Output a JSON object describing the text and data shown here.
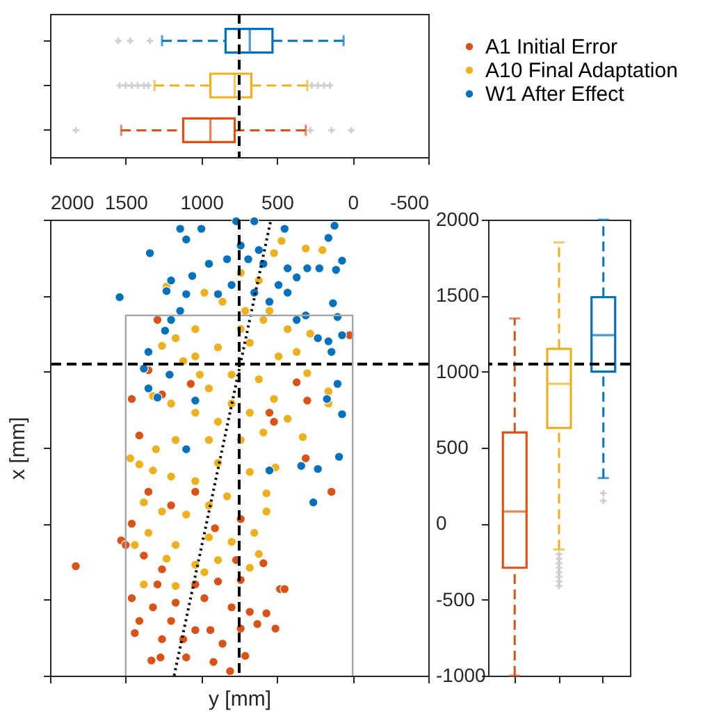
{
  "chart_data": [
    {
      "type": "box",
      "orientation": "horizontal",
      "categories": [
        null,
        null,
        null
      ],
      "xlim": [
        2000,
        -500
      ],
      "xticks": [
        2000,
        1500,
        1000,
        500,
        0,
        -500
      ],
      "tick_labels": false,
      "line_style": "dashed",
      "colors": [
        "#0072bd",
        "#edb120",
        "#d95319"
      ],
      "boxes": [
        {
          "low": 1260,
          "q1": 840,
          "median": 680,
          "q3": 530,
          "high": 60,
          "outliers": [
            1550,
            1470,
            1340
          ]
        },
        {
          "low": 1310,
          "q1": 940,
          "median": 780,
          "q3": 670,
          "high": 300,
          "outliers": [
            1540,
            1500,
            1460,
            1420,
            1380,
            1350,
            270,
            230,
            190,
            150
          ]
        },
        {
          "low": 1530,
          "q1": 1120,
          "median": 940,
          "q3": 780,
          "high": 310,
          "outliers": [
            1830,
            280,
            140,
            10
          ]
        }
      ],
      "ref_lines": [
        {
          "axis": "x",
          "value": 750,
          "color": "#000000",
          "line_style": "dashed"
        }
      ]
    },
    {
      "type": "scatter",
      "xlabel": "y [mm]",
      "ylabel": "x [mm]",
      "xlim": [
        2000,
        -500
      ],
      "xticks": [
        2000,
        1500,
        1000,
        500,
        0,
        -500
      ],
      "ylim": [
        -1000,
        2000
      ],
      "yticks": [
        -1000,
        -500,
        0,
        500,
        1000,
        1500,
        2000
      ],
      "marker": "circle",
      "legend": "top right",
      "series": [
        {
          "name": "A1 Initial Error",
          "color": "#d95319",
          "x": [
            1290,
            1350,
            1460,
            1260,
            1410,
            370,
            20,
            300,
            550,
            520,
            1070,
            1530,
            1500,
            1830,
            1460,
            1350,
            1200,
            1040,
            1380,
            1260,
            1040,
            890,
            740,
            590,
            1460,
            1410,
            1320,
            1170,
            980,
            800,
            680,
            480,
            450,
            570,
            510,
            1440,
            1260,
            1120,
            940,
            860,
            1330,
            1270,
            1100,
            920,
            810,
            710,
            630,
            310,
            140,
            910,
            740,
            1290,
            1200,
            1040,
            740,
            770
          ],
          "values": [
            1340,
            1010,
            820,
            850,
            580,
            930,
            1240,
            810,
            730,
            670,
            920,
            -110,
            -140,
            -280,
            0,
            210,
            120,
            210,
            -210,
            -300,
            -400,
            -380,
            -370,
            -260,
            -490,
            -640,
            -550,
            -520,
            -490,
            -550,
            -580,
            -430,
            -430,
            -590,
            -690,
            -720,
            -760,
            -760,
            -700,
            -790,
            -900,
            -880,
            -880,
            -910,
            -970,
            -870,
            -660,
            430,
            210,
            -30,
            30,
            -400,
            -640,
            -700,
            -690,
            -240
          ]
        },
        {
          "name": "A10 Final Adaptation",
          "color": "#edb120",
          "x": [
            470,
            310,
            200,
            520,
            740,
            620,
            1230,
            980,
            860,
            710,
            590,
            430,
            280,
            1040,
            1170,
            1260,
            890,
            680,
            490,
            370,
            300,
            160,
            160,
            1120,
            1010,
            800,
            620,
            1320,
            1200,
            1040,
            890,
            680,
            520,
            430,
            330,
            1300,
            1170,
            950,
            740,
            590,
            800,
            950,
            1040,
            740,
            550,
            1470,
            1410,
            1320,
            1200,
            1040,
            890,
            680,
            510,
            570,
            570,
            1380,
            1260,
            1100,
            950,
            830,
            1350,
            1170,
            950,
            800,
            650,
            1440,
            1230,
            1040,
            890,
            620,
            680,
            980,
            1380,
            1170
          ],
          "values": [
            1860,
            1810,
            1800,
            1780,
            1650,
            1600,
            1560,
            1520,
            1460,
            1400,
            1340,
            1280,
            1250,
            1280,
            1220,
            1170,
            1160,
            1190,
            1100,
            1130,
            990,
            870,
            790,
            1070,
            980,
            980,
            950,
            840,
            790,
            730,
            670,
            730,
            820,
            690,
            570,
            490,
            550,
            550,
            550,
            600,
            790,
            890,
            1100,
            1280,
            1400,
            430,
            390,
            350,
            310,
            280,
            400,
            340,
            370,
            200,
            80,
            140,
            80,
            60,
            120,
            180,
            -60,
            -140,
            -90,
            -120,
            -60,
            -140,
            -230,
            -270,
            -240,
            -200,
            -290,
            -320,
            -400,
            -410
          ]
        },
        {
          "name": "W1 After Effect",
          "color": "#0072bd",
          "x": [
            1140,
            1000,
            1100,
            1340,
            650,
            770,
            450,
            120,
            160,
            70,
            1540,
            1200,
            1060,
            950,
            830,
            690,
            590,
            430,
            300,
            220,
            110,
            370,
            1230,
            1100,
            130,
            100,
            70,
            160,
            140,
            230,
            1140,
            1200,
            1350,
            1380,
            1350,
            1290,
            1040,
            100,
            70,
            170,
            1210,
            1240,
            370,
            310,
            550,
            650,
            800,
            890,
            490,
            430,
            340,
            230,
            90,
            550,
            260,
            1100,
            740,
            620
          ],
          "values": [
            1940,
            1940,
            1870,
            1780,
            1990,
            1990,
            1940,
            1960,
            1880,
            1730,
            1490,
            1600,
            1630,
            1710,
            1740,
            1740,
            1710,
            1680,
            1680,
            1680,
            1670,
            1620,
            1530,
            1510,
            1450,
            1360,
            1240,
            1200,
            1130,
            1220,
            1400,
            1340,
            1130,
            1020,
            890,
            830,
            810,
            920,
            720,
            820,
            980,
            1270,
            1340,
            1370,
            1460,
            1520,
            1570,
            1510,
            1570,
            1520,
            380,
            360,
            440,
            350,
            140,
            490,
            1830,
            1800
          ]
        },
        {
          "type": "line",
          "marker": "none",
          "color": "#000000",
          "line_style": "dotted",
          "x": [
            1180,
            540
          ],
          "values": [
            -1000,
            2000
          ]
        },
        {
          "type": "line",
          "marker": "none",
          "color": "#a6a6a6",
          "x": [
            1500,
            1500,
            0,
            0
          ],
          "values": [
            -1000,
            1370,
            1370,
            -1000
          ]
        }
      ],
      "ref_lines": [
        {
          "axis": "x",
          "value": 750,
          "color": "#000000",
          "line_style": "dashed"
        },
        {
          "axis": "y",
          "value": 1050,
          "color": "#000000",
          "line_style": "dashed"
        }
      ]
    },
    {
      "type": "box",
      "categories": [
        null,
        null,
        null
      ],
      "ylim": [
        -1000,
        2000
      ],
      "yticks": [
        -1000,
        -500,
        0,
        500,
        1000,
        1500,
        2000
      ],
      "tick_labels": false,
      "line_style": "dashed",
      "colors": [
        "#d95319",
        "#edb120",
        "#0072bd"
      ],
      "boxes": [
        {
          "low": -1000,
          "q1": -290,
          "median": 80,
          "q3": 600,
          "high": 1350
        },
        {
          "low": -170,
          "q1": 630,
          "median": 920,
          "q3": 1150,
          "high": 1850,
          "outliers": [
            -200,
            -230,
            -260,
            -290,
            -320,
            -350,
            -380,
            -410
          ]
        },
        {
          "low": 300,
          "q1": 1000,
          "median": 1240,
          "q3": 1490,
          "high": 2000,
          "outliers": [
            200,
            150
          ]
        }
      ],
      "ref_lines": [
        {
          "axis": "y",
          "value": 1050,
          "color": "#000000",
          "line_style": "dashed"
        }
      ]
    }
  ]
}
